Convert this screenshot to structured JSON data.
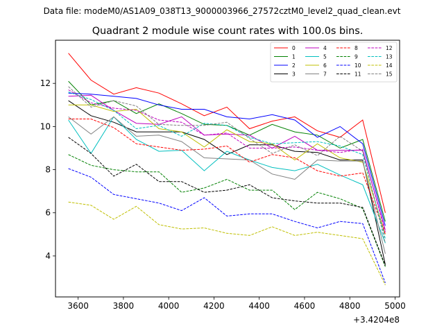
{
  "chart_data": {
    "type": "line",
    "suptitle": "Data file: modeM0/AS1A09_038T13_9000003966_27572cztM0_level2_quad_clean.evt",
    "title": "Quadrant 2 module wise count rates with 100.0s bins.",
    "xlabel": "",
    "ylabel": "",
    "offset_label": "+3.4204e8",
    "xlim": [
      3500,
      5020
    ],
    "ylim": [
      2.1,
      14.0
    ],
    "xticks": [
      3600,
      3800,
      4000,
      4200,
      4400,
      4600,
      4800,
      5000
    ],
    "xtick_labels": [
      "3600",
      "3800",
      "4000",
      "4200",
      "4400",
      "4600",
      "4800",
      "5000"
    ],
    "yticks": [
      4,
      6,
      8,
      10,
      12
    ],
    "ytick_labels": [
      "4",
      "6",
      "8",
      "10",
      "12"
    ],
    "x": [
      3557,
      3657,
      3757,
      3857,
      3957,
      4057,
      4157,
      4257,
      4357,
      4457,
      4557,
      4657,
      4757,
      4857,
      4957
    ],
    "legend_position": "upper right",
    "series": [
      {
        "name": "0",
        "color": "#ff0000",
        "dash": "solid",
        "values": [
          13.4,
          12.15,
          11.5,
          11.8,
          11.55,
          11.05,
          10.5,
          10.9,
          9.9,
          10.25,
          10.45,
          9.8,
          9.5,
          10.3,
          6.0
        ]
      },
      {
        "name": "1",
        "color": "#008000",
        "dash": "solid",
        "values": [
          12.1,
          11.0,
          11.2,
          10.6,
          11.05,
          10.6,
          10.1,
          10.05,
          9.6,
          10.1,
          9.75,
          9.6,
          9.0,
          9.4,
          5.6
        ]
      },
      {
        "name": "2",
        "color": "#0000ff",
        "dash": "solid",
        "values": [
          11.55,
          11.5,
          11.4,
          11.3,
          11.0,
          10.8,
          10.8,
          10.45,
          10.35,
          10.55,
          10.3,
          9.5,
          10.0,
          9.2,
          5.4
        ]
      },
      {
        "name": "3",
        "color": "#000000",
        "dash": "solid",
        "values": [
          11.2,
          10.5,
          10.2,
          9.75,
          9.75,
          9.75,
          9.4,
          8.7,
          9.15,
          9.15,
          8.85,
          8.8,
          8.45,
          8.45,
          3.6
        ]
      },
      {
        "name": "4",
        "color": "#bf00bf",
        "dash": "solid",
        "values": [
          11.4,
          11.45,
          10.75,
          10.15,
          10.1,
          10.45,
          9.6,
          9.65,
          9.6,
          9.0,
          9.55,
          8.9,
          8.9,
          8.9,
          5.2
        ]
      },
      {
        "name": "5",
        "color": "#00bfbf",
        "dash": "solid",
        "values": [
          10.3,
          8.75,
          10.45,
          9.4,
          8.85,
          8.9,
          7.95,
          8.85,
          8.45,
          8.1,
          7.95,
          8.25,
          7.75,
          7.3,
          4.6
        ]
      },
      {
        "name": "6",
        "color": "#bfbf00",
        "dash": "solid",
        "values": [
          11.0,
          11.0,
          10.7,
          10.8,
          9.9,
          9.75,
          9.05,
          9.85,
          9.3,
          9.2,
          8.45,
          9.2,
          8.55,
          8.35,
          5.0
        ]
      },
      {
        "name": "7",
        "color": "#808080",
        "dash": "solid",
        "values": [
          10.45,
          9.65,
          10.45,
          9.55,
          9.6,
          9.3,
          8.55,
          8.5,
          8.45,
          7.8,
          7.55,
          8.45,
          8.4,
          8.4,
          4.1
        ]
      },
      {
        "name": "8",
        "color": "#ff0000",
        "dash": "dashed",
        "values": [
          10.35,
          10.35,
          9.95,
          9.2,
          9.05,
          8.9,
          8.95,
          9.1,
          8.35,
          8.7,
          8.55,
          7.95,
          7.7,
          7.85,
          5.0
        ]
      },
      {
        "name": "9",
        "color": "#008000",
        "dash": "dashed",
        "values": [
          8.7,
          8.2,
          8.0,
          7.9,
          7.9,
          6.95,
          7.15,
          7.55,
          7.05,
          7.05,
          6.15,
          6.95,
          6.65,
          6.2,
          3.5
        ]
      },
      {
        "name": "10",
        "color": "#0000ff",
        "dash": "dashed",
        "values": [
          8.05,
          7.65,
          6.85,
          6.65,
          6.45,
          6.1,
          6.7,
          5.85,
          5.95,
          5.95,
          5.6,
          5.3,
          5.6,
          5.5,
          2.75
        ]
      },
      {
        "name": "11",
        "color": "#000000",
        "dash": "dashed",
        "values": [
          9.5,
          8.75,
          7.7,
          8.25,
          7.45,
          7.45,
          6.95,
          7.05,
          7.3,
          6.7,
          6.55,
          6.45,
          6.45,
          6.25,
          3.55
        ]
      },
      {
        "name": "12",
        "color": "#bf00bf",
        "dash": "dashed",
        "values": [
          11.7,
          11.1,
          10.85,
          10.75,
          10.3,
          10.2,
          9.6,
          9.7,
          9.0,
          9.0,
          9.05,
          8.9,
          8.8,
          8.95,
          5.1
        ]
      },
      {
        "name": "13",
        "color": "#00bfbf",
        "dash": "dashed",
        "values": [
          11.6,
          11.25,
          10.75,
          9.9,
          10.05,
          9.55,
          10.15,
          10.05,
          9.5,
          9.2,
          9.25,
          9.3,
          9.1,
          8.7,
          4.8
        ]
      },
      {
        "name": "14",
        "color": "#bfbf00",
        "dash": "dashed",
        "values": [
          6.5,
          6.35,
          5.7,
          6.3,
          5.45,
          5.25,
          5.3,
          5.05,
          4.95,
          5.35,
          4.95,
          5.1,
          4.95,
          4.8,
          2.65
        ]
      },
      {
        "name": "15",
        "color": "#808080",
        "dash": "dashed",
        "values": [
          11.85,
          10.9,
          11.2,
          10.95,
          10.1,
          10.05,
          10.05,
          10.2,
          9.45,
          8.75,
          9.15,
          8.65,
          9.55,
          8.85,
          4.6
        ]
      }
    ]
  }
}
